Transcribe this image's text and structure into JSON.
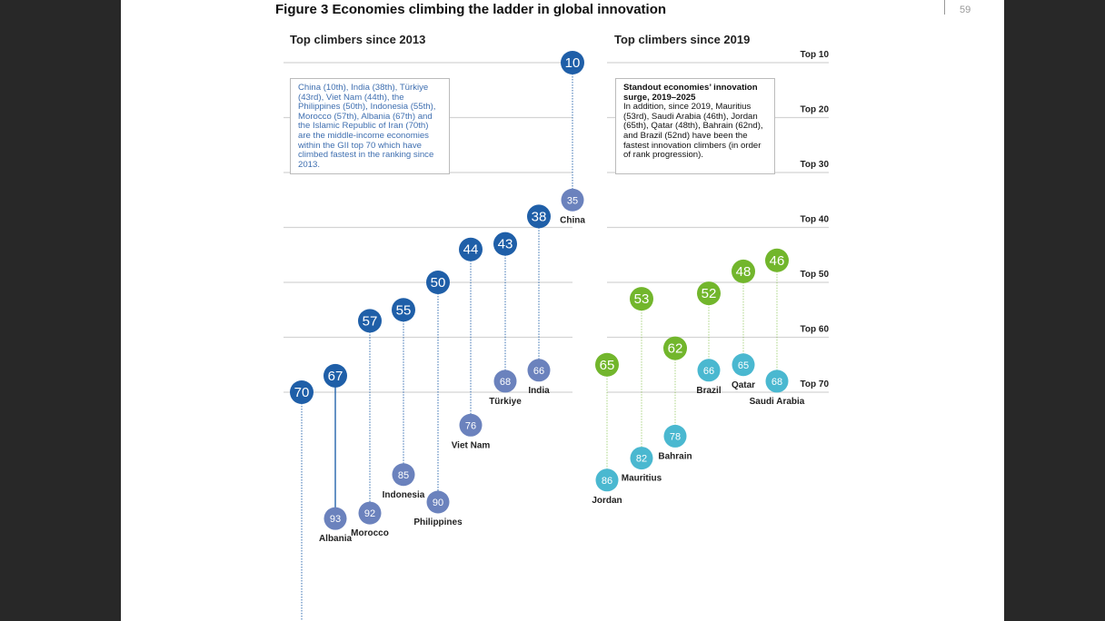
{
  "page_number": "59",
  "title": "Figure 3 Economies climbing the ladder in global innovation",
  "chart_data": [
    {
      "type": "dumbbell",
      "title": "Top climbers since 2013",
      "y_axis": "rank",
      "ylim": [
        10,
        113
      ],
      "note": "China (10th), India (38th), Türkiye (43rd), Viet Nam (44th), the Philippines (50th), Indonesia (55th), Morocco (57th), Albania (67th) and the Islamic Republic of Iran (70th)  are the middle-income economies within the GII top 70 which have climbed fastest in the ranking since 2013.",
      "colors": {
        "current": "#1f5fa8",
        "past": "#6b82bd"
      },
      "economies": [
        {
          "name": "",
          "rank_2025": 70,
          "rank_past": null
        },
        {
          "name": "Albania",
          "rank_2025": 67,
          "rank_past": 93
        },
        {
          "name": "Morocco",
          "rank_2025": 57,
          "rank_past": 92
        },
        {
          "name": "Indonesia",
          "rank_2025": 55,
          "rank_past": 85
        },
        {
          "name": "Philippines",
          "rank_2025": 50,
          "rank_past": 90
        },
        {
          "name": "Viet Nam",
          "rank_2025": 44,
          "rank_past": 76
        },
        {
          "name": "Türkiye",
          "rank_2025": 43,
          "rank_past": 68
        },
        {
          "name": "India",
          "rank_2025": 38,
          "rank_past": 66
        },
        {
          "name": "China",
          "rank_2025": 10,
          "rank_past": 35
        }
      ]
    },
    {
      "type": "dumbbell",
      "title": "Top climbers since 2019",
      "y_axis": "rank",
      "note_title": "Standout economies’ innovation surge, 2019–2025",
      "note": "In addition, since 2019, Mauritius (53rd), Saudi Arabia (46th), Jordan (65th), Qatar (48th), Bahrain (62nd), and Brazil (52nd) have been the fastest innovation climbers (in order of rank progression).",
      "colors": {
        "current": "#72b62c",
        "past": "#4ab8d0"
      },
      "economies": [
        {
          "name": "Jordan",
          "rank_2025": 65,
          "rank_past": 86
        },
        {
          "name": "Mauritius",
          "rank_2025": 53,
          "rank_past": 82
        },
        {
          "name": "Bahrain",
          "rank_2025": 62,
          "rank_past": 78
        },
        {
          "name": "Brazil",
          "rank_2025": 52,
          "rank_past": 66
        },
        {
          "name": "Qatar",
          "rank_2025": 48,
          "rank_past": 65
        },
        {
          "name": "Saudi Arabia",
          "rank_2025": 46,
          "rank_past": 68
        }
      ]
    }
  ],
  "gridlines": [
    "Top 10",
    "Top 20",
    "Top 30",
    "Top 40",
    "Top 50",
    "Top 60",
    "Top 70"
  ]
}
